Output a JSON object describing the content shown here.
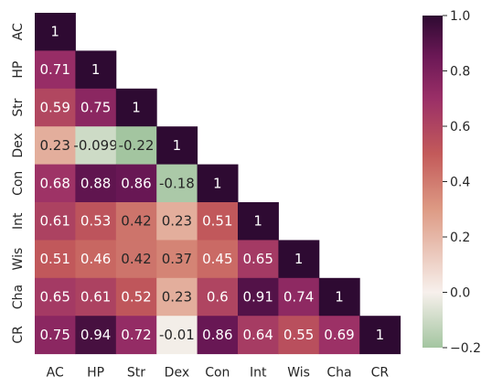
{
  "chart_data": {
    "type": "heatmap",
    "variables": [
      "AC",
      "HP",
      "Str",
      "Dex",
      "Con",
      "Int",
      "Wis",
      "Cha",
      "CR"
    ],
    "matrix": [
      [
        1
      ],
      [
        0.71,
        1
      ],
      [
        0.59,
        0.75,
        1
      ],
      [
        0.23,
        -0.099,
        -0.22,
        1
      ],
      [
        0.68,
        0.88,
        0.86,
        -0.18,
        1
      ],
      [
        0.61,
        0.53,
        0.42,
        0.23,
        0.51,
        1
      ],
      [
        0.51,
        0.46,
        0.42,
        0.37,
        0.45,
        0.65,
        1
      ],
      [
        0.65,
        0.61,
        0.52,
        0.23,
        0.6,
        0.91,
        0.74,
        1
      ],
      [
        0.75,
        0.94,
        0.72,
        -0.01,
        0.86,
        0.64,
        0.55,
        0.69,
        1
      ]
    ],
    "cell_labels": [
      [
        "1"
      ],
      [
        "0.71",
        "1"
      ],
      [
        "0.59",
        "0.75",
        "1"
      ],
      [
        "0.23",
        "-0.099",
        "-0.22",
        "1"
      ],
      [
        "0.68",
        "0.88",
        "0.86",
        "-0.18",
        "1"
      ],
      [
        "0.61",
        "0.53",
        "0.42",
        "0.23",
        "0.51",
        "1"
      ],
      [
        "0.51",
        "0.46",
        "0.42",
        "0.37",
        "0.45",
        "0.65",
        "1"
      ],
      [
        "0.65",
        "0.61",
        "0.52",
        "0.23",
        "0.6",
        "0.91",
        "0.74",
        "1"
      ],
      [
        "0.75",
        "0.94",
        "0.72",
        "-0.01",
        "0.86",
        "0.64",
        "0.55",
        "0.69",
        "1"
      ]
    ],
    "mask": "upper triangle hidden",
    "colorbar": {
      "range": [
        -0.2,
        1.0
      ],
      "ticks": [
        -0.2,
        0.0,
        0.2,
        0.4,
        0.6,
        0.8,
        1.0
      ],
      "tick_labels": [
        "−0.2",
        "0.0",
        "0.2",
        "0.4",
        "0.6",
        "0.8",
        "1.0"
      ]
    },
    "colormap": [
      [
        -0.2,
        "#a3c5a0"
      ],
      [
        0.0,
        "#f7f0ec"
      ],
      [
        0.3,
        "#dd9a84"
      ],
      [
        0.5,
        "#c35a5a"
      ],
      [
        0.7,
        "#9a2f67"
      ],
      [
        0.85,
        "#6c1856"
      ],
      [
        1.0,
        "#2e0a32"
      ]
    ],
    "title": "",
    "xlabel": "",
    "ylabel": ""
  }
}
